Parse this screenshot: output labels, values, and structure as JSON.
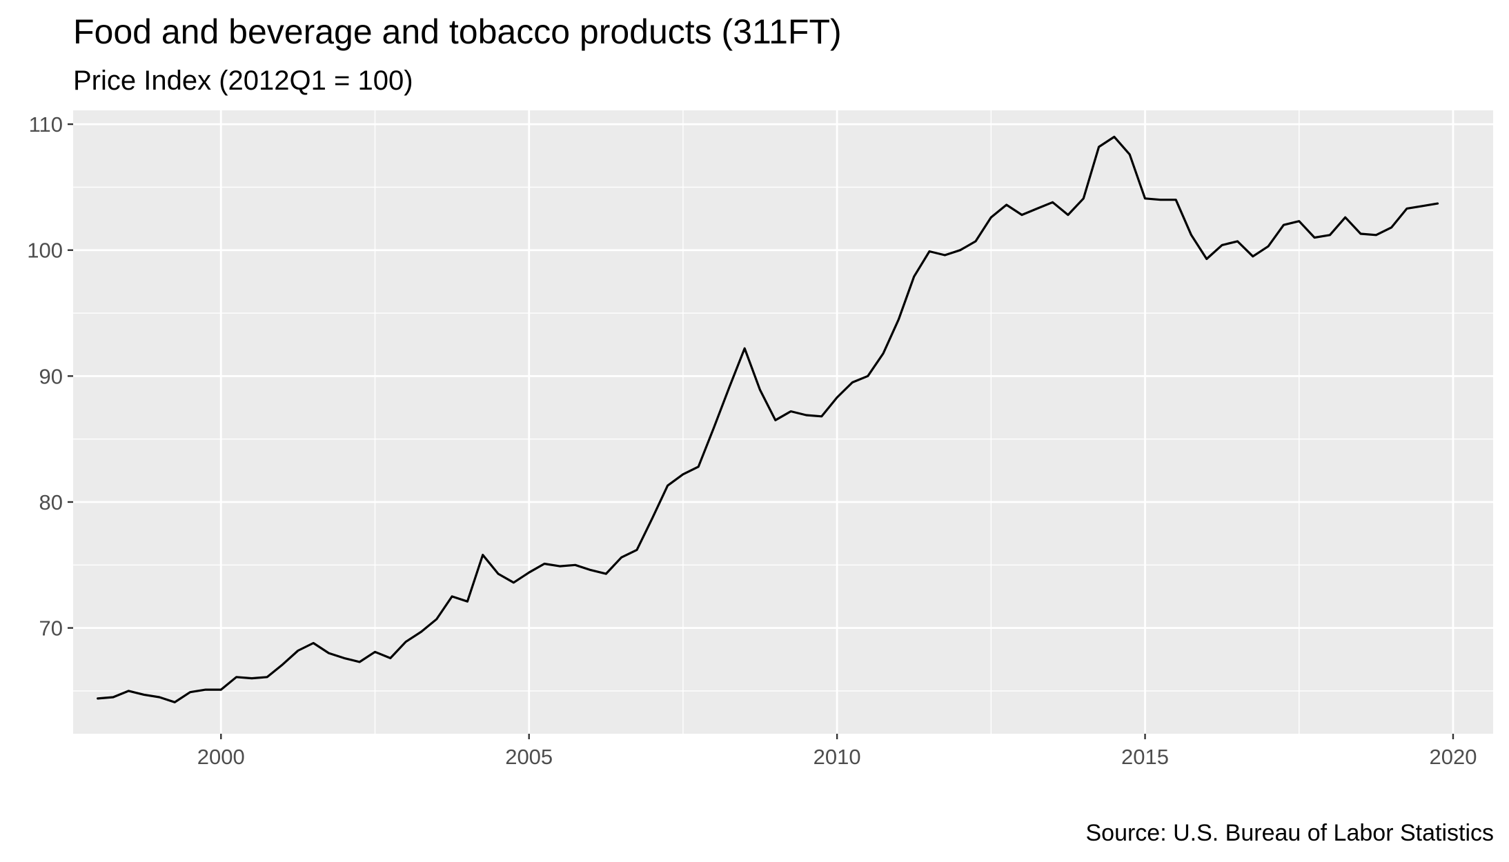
{
  "chart_data": {
    "type": "line",
    "title": "Food and beverage and tobacco products (311FT)",
    "subtitle": "Price Index (2012Q1 = 100)",
    "caption": "Source: U.S. Bureau of Labor Statistics",
    "xlabel": "",
    "ylabel": "",
    "x_ticks": [
      2000,
      2005,
      2010,
      2015,
      2020
    ],
    "y_ticks": [
      70,
      80,
      90,
      100,
      110
    ],
    "xlim": [
      1997.6,
      2020.65
    ],
    "ylim": [
      61.6,
      111.1
    ],
    "grid": true,
    "legend": "none",
    "colors": {
      "panel": "#ebebeb",
      "grid": "#ffffff",
      "line": "#000000",
      "tick_text": "#4d4d4d"
    },
    "series": [
      {
        "x": [
          1998.0,
          1998.25,
          1998.5,
          1998.75,
          1999.0,
          1999.25,
          1999.5,
          1999.75,
          2000.0,
          2000.25,
          2000.5,
          2000.75,
          2001.0,
          2001.25,
          2001.5,
          2001.75,
          2002.0,
          2002.25,
          2002.5,
          2002.75,
          2003.0,
          2003.25,
          2003.5,
          2003.75,
          2004.0,
          2004.25,
          2004.5,
          2004.75,
          2005.0,
          2005.25,
          2005.5,
          2005.75,
          2006.0,
          2006.25,
          2006.5,
          2006.75,
          2007.0,
          2007.25,
          2007.5,
          2007.75,
          2008.0,
          2008.25,
          2008.5,
          2008.75,
          2009.0,
          2009.25,
          2009.5,
          2009.75,
          2010.0,
          2010.25,
          2010.5,
          2010.75,
          2011.0,
          2011.25,
          2011.5,
          2011.75,
          2012.0,
          2012.25,
          2012.5,
          2012.75,
          2013.0,
          2013.25,
          2013.5,
          2013.75,
          2014.0,
          2014.25,
          2014.5,
          2014.75,
          2015.0,
          2015.25,
          2015.5,
          2015.75,
          2016.0,
          2016.25,
          2016.5,
          2016.75,
          2017.0,
          2017.25,
          2017.5,
          2017.75,
          2018.0,
          2018.25,
          2018.5,
          2018.75,
          2019.0,
          2019.25,
          2019.5,
          2019.75
        ],
        "values": [
          64.4,
          64.5,
          65.0,
          64.7,
          64.5,
          64.1,
          64.9,
          65.1,
          65.1,
          66.1,
          66.0,
          66.1,
          67.1,
          68.2,
          68.8,
          68.0,
          67.6,
          67.3,
          68.1,
          67.6,
          68.9,
          69.7,
          70.7,
          72.5,
          72.1,
          75.8,
          74.3,
          73.6,
          74.4,
          75.1,
          74.9,
          75.0,
          74.6,
          74.3,
          75.6,
          76.2,
          78.7,
          81.3,
          82.2,
          82.8,
          85.9,
          89.1,
          92.2,
          88.9,
          86.5,
          87.2,
          86.9,
          86.8,
          88.3,
          89.5,
          90.0,
          91.8,
          94.5,
          97.9,
          99.9,
          99.6,
          100.0,
          100.7,
          102.6,
          103.6,
          102.8,
          103.3,
          103.8,
          102.8,
          104.1,
          108.2,
          109.0,
          107.6,
          104.1,
          104.0,
          104.0,
          101.2,
          99.3,
          100.4,
          100.7,
          99.5,
          100.3,
          102.0,
          102.3,
          101.0,
          101.2,
          102.6,
          101.3,
          101.2,
          101.8,
          103.3,
          103.5,
          103.7
        ]
      }
    ]
  }
}
